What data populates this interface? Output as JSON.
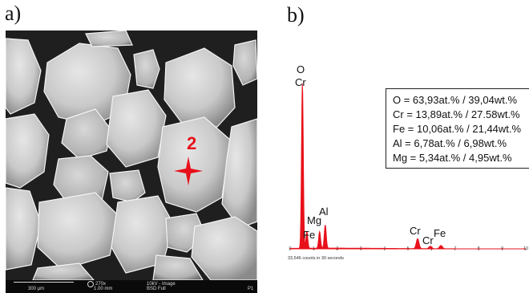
{
  "panels": {
    "a_label": "a)",
    "b_label": "b)"
  },
  "sem": {
    "marker_label": "2",
    "marker_icon": "red-star-marker",
    "marker_color": "#e8101a",
    "scale": "300 µm",
    "magnification": "270x",
    "field_width": "1.00 mm",
    "voltage_mode": "10kV - Image",
    "detector": "BSD Full",
    "panel_id": "P1"
  },
  "eds": {
    "peak_labels": {
      "o": "O",
      "cr1": "Cr",
      "al": "Al",
      "mg": "Mg",
      "fe1": "Fe",
      "cr2": "Cr",
      "cr3": "Cr",
      "fe2": "Fe"
    },
    "counts_caption": "33,546 counts in 30 seconds",
    "composition": [
      "O = 63,93at.% / 39,04wt.%",
      "Cr = 13,89at.% / 27.58wt.%",
      "Fe = 10,06at.% / 21,44wt.%",
      "Al = 6,78at.% / 6,98wt.%",
      "Mg = 5,34at.% / 4,95wt.%"
    ],
    "tick_labels": [
      "0",
      "1",
      "2",
      "3",
      "4",
      "5",
      "6",
      "7",
      "8",
      "9",
      "10"
    ]
  },
  "chart_data": {
    "type": "line",
    "title": "",
    "xlabel": "",
    "ylabel": "",
    "xlim": [
      0,
      10
    ],
    "ylim": [
      0,
      1
    ],
    "x_tick_labels": [
      "0",
      "1",
      "2",
      "3",
      "4",
      "5",
      "6",
      "7",
      "8",
      "9",
      "10"
    ],
    "series_color": "#e8101a",
    "peaks": [
      {
        "x": 0.52,
        "y": 1.0
      },
      {
        "x": 0.71,
        "y": 0.1
      },
      {
        "x": 1.25,
        "y": 0.1
      },
      {
        "x": 1.49,
        "y": 0.14
      },
      {
        "x": 5.41,
        "y": 0.06
      },
      {
        "x": 5.95,
        "y": 0.015
      },
      {
        "x": 6.4,
        "y": 0.02
      }
    ]
  }
}
